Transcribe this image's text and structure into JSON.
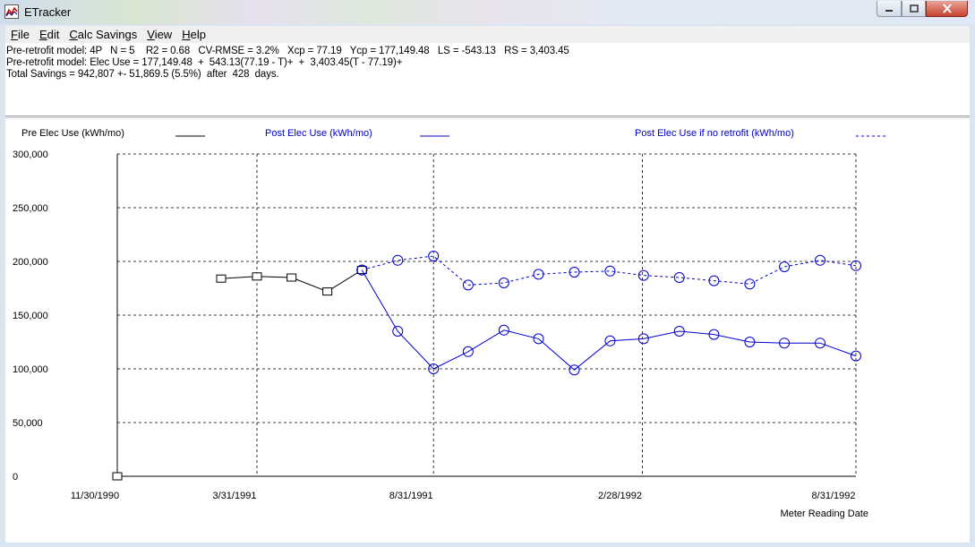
{
  "window": {
    "title": "ETracker"
  },
  "menu": [
    {
      "label": "File",
      "accel": "F",
      "rest": "ile"
    },
    {
      "label": "Edit",
      "accel": "E",
      "rest": "dit"
    },
    {
      "label": "Calc Savings",
      "accel": "C",
      "rest": "alc Savings"
    },
    {
      "label": "View",
      "accel": "V",
      "rest": "iew"
    },
    {
      "label": "Help",
      "accel": "H",
      "rest": "elp"
    }
  ],
  "info": {
    "line1": "Pre-retrofit model: 4P   N = 5    R2 = 0.68   CV-RMSE = 3.2%   Xcp = 77.19   Ycp = 177,149.48   LS = -543.13   RS = 3,403.45",
    "line2": "Pre-retrofit model: Elec Use = 177,149.48  +  543.13(77.19 - T)+  +  3,403.45(T - 77.19)+",
    "line3": "Total Savings = 942,807 +- 51,869.5 (5.5%)  after  428  days."
  },
  "colors": {
    "pre": "#000000",
    "post": "#0000cc",
    "grid": "#000000"
  },
  "chart_data": {
    "type": "line",
    "x_type": "date",
    "xlabel": "Meter Reading Date",
    "ylabel": "",
    "ylim": [
      0,
      300000
    ],
    "xlim": [
      "1990-11-30",
      "1992-08-31"
    ],
    "grid": true,
    "legend_position": "top",
    "yticks": [
      0,
      50000,
      100000,
      150000,
      200000,
      250000,
      300000
    ],
    "ytick_labels": [
      "0",
      "50,000",
      "100,000",
      "150,000",
      "200,000",
      "250,000",
      "300,000"
    ],
    "xticks": [
      "1990-11-30",
      "1991-03-31",
      "1991-08-31",
      "1992-02-28",
      "1992-08-31"
    ],
    "xtick_labels": [
      "11/30/1990",
      "3/31/1991",
      "8/31/1991",
      "2/28/1992",
      "8/31/1992"
    ],
    "series": [
      {
        "name": "Pre Elec Use (kWh/mo)",
        "color": "#000000",
        "dash": "solid",
        "marker": "square",
        "x": [
          "1991-02-28",
          "1991-03-31",
          "1991-04-30",
          "1991-05-31",
          "1991-06-30"
        ],
        "y": [
          184000,
          186000,
          185000,
          172000,
          192000
        ]
      },
      {
        "name": "",
        "color": "#000000",
        "dash": "none",
        "marker": "square",
        "x": [
          "1990-11-30"
        ],
        "y": [
          0
        ]
      },
      {
        "name": "Post Elec Use (kWh/mo)",
        "color": "#0000cc",
        "dash": "solid",
        "marker": "circle",
        "x": [
          "1991-06-30",
          "1991-07-31",
          "1991-08-31",
          "1991-09-30",
          "1991-10-31",
          "1991-11-30",
          "1991-12-31",
          "1992-01-31",
          "1992-02-29",
          "1992-03-31",
          "1992-04-30",
          "1992-05-31",
          "1992-06-30",
          "1992-07-31",
          "1992-08-31"
        ],
        "y": [
          192000,
          135000,
          100000,
          116000,
          136000,
          128000,
          99000,
          126000,
          128000,
          135000,
          132000,
          125000,
          124000,
          124000,
          112000
        ]
      },
      {
        "name": "Post Elec Use if no retrofit (kWh/mo)",
        "color": "#0000cc",
        "dash": "dashed",
        "marker": "circle",
        "x": [
          "1991-06-30",
          "1991-07-31",
          "1991-08-31",
          "1991-09-30",
          "1991-10-31",
          "1991-11-30",
          "1991-12-31",
          "1992-01-31",
          "1992-02-29",
          "1992-03-31",
          "1992-04-30",
          "1992-05-31",
          "1992-06-30",
          "1992-07-31",
          "1992-08-31"
        ],
        "y": [
          192000,
          201000,
          205000,
          178000,
          180000,
          188000,
          190000,
          191000,
          187000,
          185000,
          182000,
          179000,
          195000,
          201000,
          196000
        ]
      }
    ]
  }
}
